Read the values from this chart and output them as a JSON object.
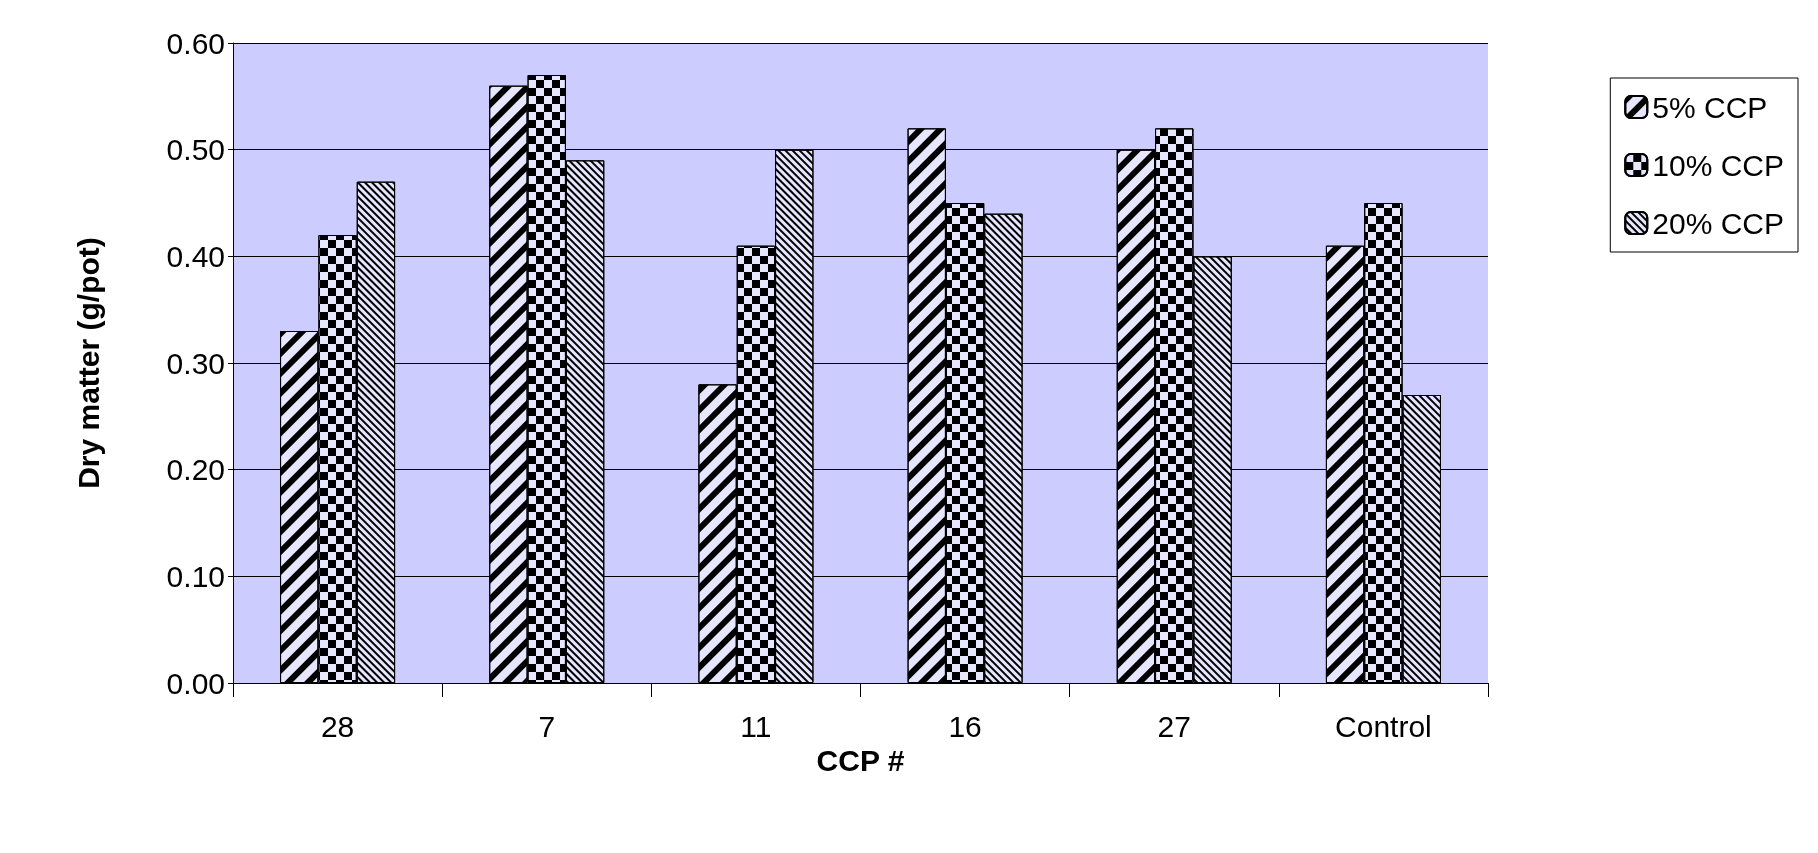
{
  "chart_data": {
    "type": "bar",
    "xlabel": "CCP #",
    "ylabel": "Dry matter (g/pot)",
    "categories": [
      "28",
      "7",
      "11",
      "16",
      "27",
      "Control"
    ],
    "series": [
      {
        "name": "5% CCP",
        "color": "#e6e6ff",
        "values": [
          0.33,
          0.56,
          0.28,
          0.52,
          0.5,
          0.41
        ]
      },
      {
        "name": "10% CCP",
        "color": "#e6e6ff",
        "values": [
          0.42,
          0.57,
          0.41,
          0.45,
          0.52,
          0.45
        ]
      },
      {
        "name": "20% CCP",
        "color": "#e6e6ff",
        "values": [
          0.47,
          0.49,
          0.5,
          0.44,
          0.4,
          0.27
        ]
      }
    ],
    "ylim": [
      0,
      0.6
    ],
    "yticks": [
      {
        "value": 0,
        "label": "0.00"
      },
      {
        "value": 0.1,
        "label": "0.10"
      },
      {
        "value": 0.2,
        "label": "0.20"
      },
      {
        "value": 0.3,
        "label": "0.30"
      },
      {
        "value": 0.4,
        "label": "0.40"
      },
      {
        "value": 0.5,
        "label": "0.50"
      },
      {
        "value": 0.6,
        "label": "0.60"
      }
    ],
    "grid": "y",
    "legend": "right"
  }
}
